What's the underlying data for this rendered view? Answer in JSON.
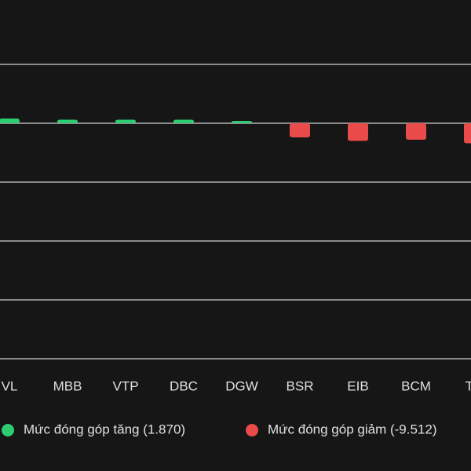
{
  "chart_data": {
    "type": "bar",
    "categories": [
      "VL",
      "MBB",
      "VTP",
      "DBC",
      "DGW",
      "BSR",
      "EIB",
      "BCM",
      "TC"
    ],
    "series": [
      {
        "name": "Mức đóng góp tăng (1.870)",
        "color": "#2ecc71",
        "values": [
          0.4,
          0.3,
          0.3,
          0.3,
          0.2,
          null,
          null,
          null,
          null
        ]
      },
      {
        "name": "Mức đóng góp giảm (-9.512)",
        "color": "#e94b4b",
        "values": [
          null,
          null,
          null,
          null,
          null,
          -1.2,
          -1.5,
          -1.4,
          -1.7
        ]
      }
    ],
    "ylim": [
      -20,
      5
    ],
    "yticks": [
      5,
      0,
      -5,
      -10,
      -15,
      -20
    ],
    "grid": true
  }
}
